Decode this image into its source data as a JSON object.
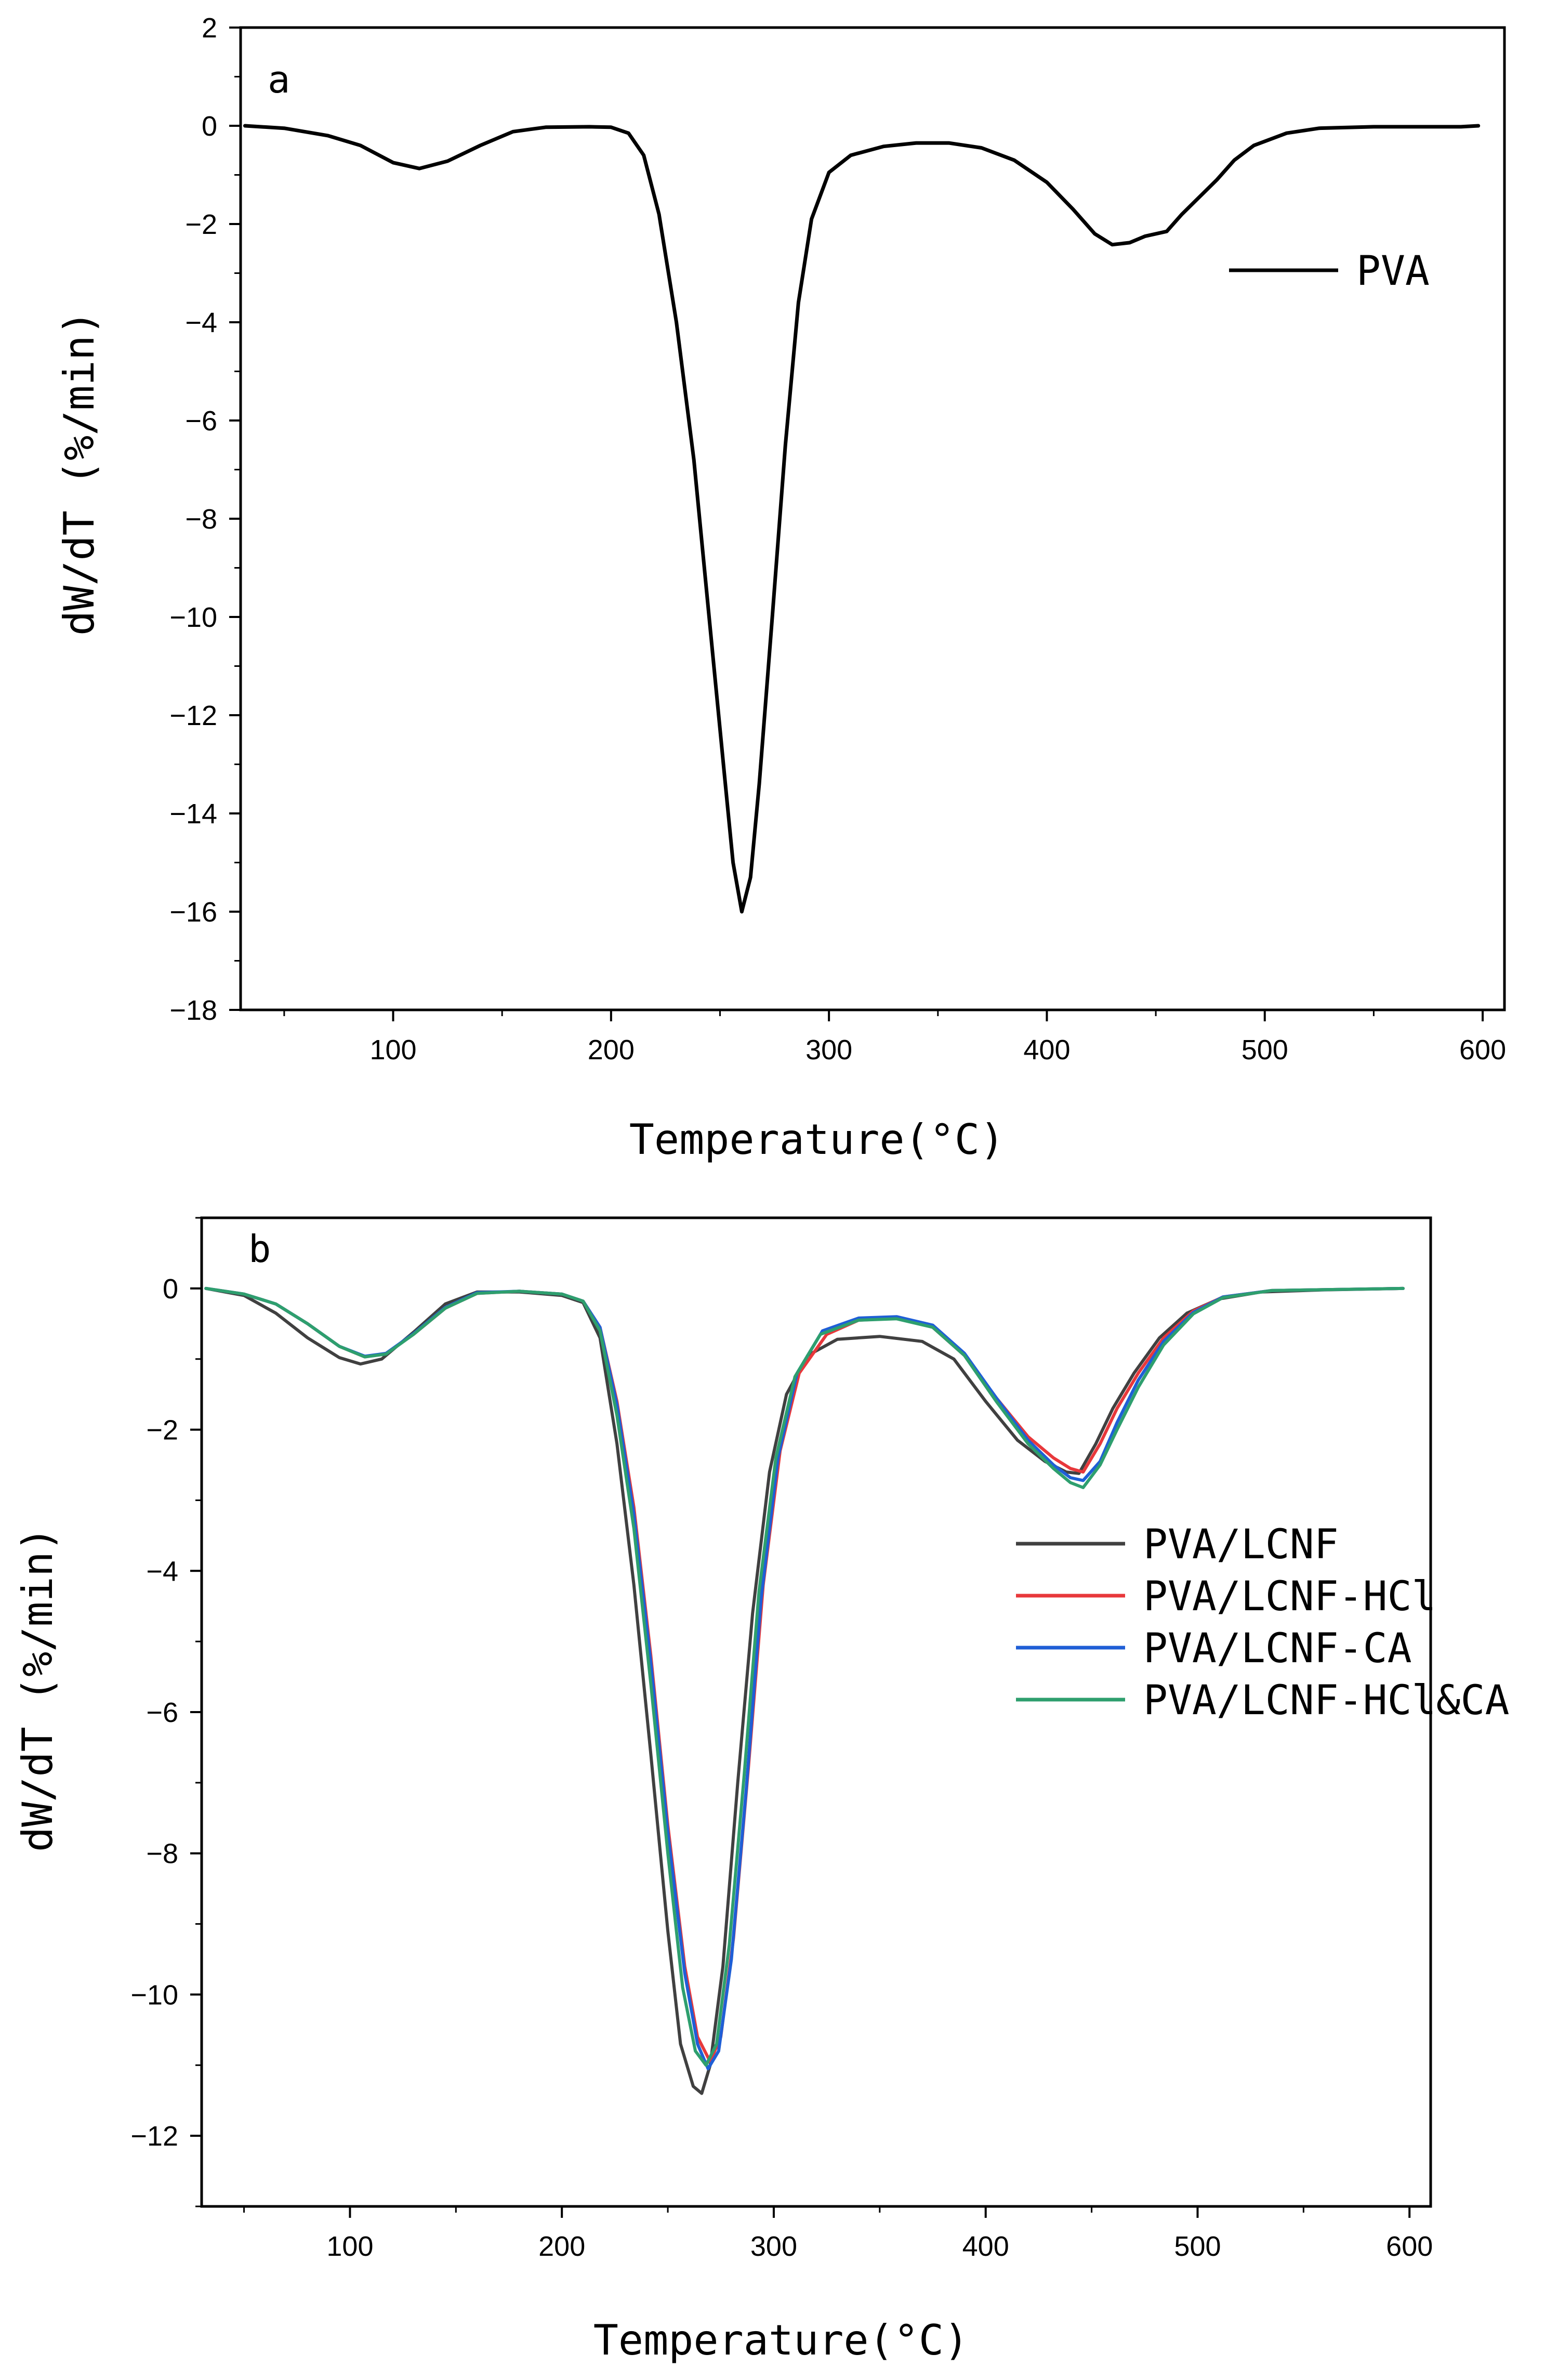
{
  "chart_data": [
    {
      "type": "line",
      "panel_label": "a",
      "xlabel": "Temperature(°C)",
      "ylabel": "dW/dT (%/min)",
      "xlim": [
        30,
        610
      ],
      "ylim": [
        -18,
        2
      ],
      "xticks": [
        100,
        200,
        300,
        400,
        500,
        600
      ],
      "xtick_labels": [
        "100",
        "200",
        "300",
        "400",
        "500",
        "600"
      ],
      "yticks": [
        -18,
        -16,
        -14,
        -12,
        -10,
        -8,
        -6,
        -4,
        -2,
        0,
        2
      ],
      "ytick_labels": [
        "−18",
        "−16",
        "−14",
        "−12",
        "−10",
        "−8",
        "−6",
        "−4",
        "−2",
        "0",
        "2"
      ],
      "legend_position": "upper-right",
      "series": [
        {
          "name": "PVA",
          "color": "#000000",
          "points": [
            [
              32,
              0
            ],
            [
              50,
              -0.05
            ],
            [
              70,
              -0.2
            ],
            [
              85,
              -0.4
            ],
            [
              100,
              -0.75
            ],
            [
              112,
              -0.87
            ],
            [
              125,
              -0.72
            ],
            [
              140,
              -0.4
            ],
            [
              155,
              -0.12
            ],
            [
              170,
              -0.03
            ],
            [
              190,
              -0.02
            ],
            [
              200,
              -0.03
            ],
            [
              208,
              -0.15
            ],
            [
              215,
              -0.6
            ],
            [
              222,
              -1.8
            ],
            [
              230,
              -4.0
            ],
            [
              238,
              -6.8
            ],
            [
              245,
              -10.0
            ],
            [
              252,
              -13.2
            ],
            [
              256,
              -15.0
            ],
            [
              260,
              -16.0
            ],
            [
              264,
              -15.3
            ],
            [
              268,
              -13.4
            ],
            [
              274,
              -10.0
            ],
            [
              280,
              -6.5
            ],
            [
              286,
              -3.6
            ],
            [
              292,
              -1.9
            ],
            [
              300,
              -0.95
            ],
            [
              310,
              -0.6
            ],
            [
              325,
              -0.42
            ],
            [
              340,
              -0.35
            ],
            [
              355,
              -0.35
            ],
            [
              370,
              -0.45
            ],
            [
              385,
              -0.7
            ],
            [
              400,
              -1.15
            ],
            [
              412,
              -1.7
            ],
            [
              422,
              -2.2
            ],
            [
              430,
              -2.42
            ],
            [
              438,
              -2.38
            ],
            [
              445,
              -2.25
            ],
            [
              455,
              -2.15
            ],
            [
              462,
              -1.8
            ],
            [
              470,
              -1.45
            ],
            [
              478,
              -1.1
            ],
            [
              486,
              -0.7
            ],
            [
              495,
              -0.4
            ],
            [
              510,
              -0.15
            ],
            [
              525,
              -0.05
            ],
            [
              550,
              -0.02
            ],
            [
              575,
              -0.02
            ],
            [
              590,
              -0.02
            ],
            [
              598,
              0
            ]
          ]
        }
      ]
    },
    {
      "type": "line",
      "panel_label": "b",
      "xlabel": "Temperature(°C)",
      "ylabel": "dW/dT (%/min)",
      "xlim": [
        30,
        610
      ],
      "ylim": [
        -13,
        1
      ],
      "xticks": [
        100,
        200,
        300,
        400,
        500,
        600
      ],
      "xtick_labels": [
        "100",
        "200",
        "300",
        "400",
        "500",
        "600"
      ],
      "yticks": [
        -12,
        -10,
        -8,
        -6,
        -4,
        -2,
        0
      ],
      "ytick_labels": [
        "−12",
        "−10",
        "−8",
        "−6",
        "−4",
        "−2",
        "0"
      ],
      "legend_position": "right",
      "series": [
        {
          "name": "PVA/LCNF",
          "color": "#404040",
          "points": [
            [
              32,
              0
            ],
            [
              50,
              -0.1
            ],
            [
              65,
              -0.35
            ],
            [
              80,
              -0.7
            ],
            [
              95,
              -0.98
            ],
            [
              105,
              -1.07
            ],
            [
              115,
              -1.0
            ],
            [
              130,
              -0.62
            ],
            [
              145,
              -0.22
            ],
            [
              160,
              -0.05
            ],
            [
              180,
              -0.05
            ],
            [
              200,
              -0.1
            ],
            [
              210,
              -0.2
            ],
            [
              218,
              -0.7
            ],
            [
              226,
              -2.2
            ],
            [
              234,
              -4.2
            ],
            [
              242,
              -6.6
            ],
            [
              250,
              -9.1
            ],
            [
              256,
              -10.7
            ],
            [
              262,
              -11.3
            ],
            [
              266,
              -11.4
            ],
            [
              270,
              -11.0
            ],
            [
              276,
              -9.6
            ],
            [
              283,
              -7.0
            ],
            [
              290,
              -4.6
            ],
            [
              298,
              -2.6
            ],
            [
              306,
              -1.5
            ],
            [
              316,
              -0.95
            ],
            [
              330,
              -0.72
            ],
            [
              350,
              -0.68
            ],
            [
              370,
              -0.75
            ],
            [
              385,
              -1.0
            ],
            [
              400,
              -1.6
            ],
            [
              415,
              -2.15
            ],
            [
              428,
              -2.45
            ],
            [
              438,
              -2.6
            ],
            [
              444,
              -2.62
            ],
            [
              452,
              -2.2
            ],
            [
              460,
              -1.7
            ],
            [
              470,
              -1.2
            ],
            [
              482,
              -0.7
            ],
            [
              495,
              -0.35
            ],
            [
              510,
              -0.15
            ],
            [
              530,
              -0.05
            ],
            [
              560,
              -0.02
            ],
            [
              597,
              0
            ]
          ]
        },
        {
          "name": "PVA/LCNF-HCl",
          "color": "#e8383b",
          "points": [
            [
              32,
              0
            ],
            [
              50,
              -0.08
            ],
            [
              65,
              -0.22
            ],
            [
              80,
              -0.5
            ],
            [
              95,
              -0.82
            ],
            [
              107,
              -0.97
            ],
            [
              117,
              -0.92
            ],
            [
              130,
              -0.65
            ],
            [
              145,
              -0.28
            ],
            [
              160,
              -0.07
            ],
            [
              180,
              -0.04
            ],
            [
              200,
              -0.08
            ],
            [
              210,
              -0.18
            ],
            [
              218,
              -0.55
            ],
            [
              226,
              -1.6
            ],
            [
              234,
              -3.1
            ],
            [
              242,
              -5.2
            ],
            [
              250,
              -7.6
            ],
            [
              258,
              -9.6
            ],
            [
              264,
              -10.6
            ],
            [
              270,
              -10.95
            ],
            [
              275,
              -10.6
            ],
            [
              281,
              -9.2
            ],
            [
              288,
              -6.8
            ],
            [
              295,
              -4.2
            ],
            [
              303,
              -2.3
            ],
            [
              312,
              -1.2
            ],
            [
              325,
              -0.65
            ],
            [
              340,
              -0.45
            ],
            [
              360,
              -0.42
            ],
            [
              375,
              -0.55
            ],
            [
              390,
              -0.95
            ],
            [
              405,
              -1.55
            ],
            [
              420,
              -2.1
            ],
            [
              432,
              -2.4
            ],
            [
              440,
              -2.55
            ],
            [
              446,
              -2.6
            ],
            [
              454,
              -2.2
            ],
            [
              462,
              -1.7
            ],
            [
              472,
              -1.2
            ],
            [
              484,
              -0.7
            ],
            [
              498,
              -0.32
            ],
            [
              512,
              -0.12
            ],
            [
              535,
              -0.03
            ],
            [
              597,
              0
            ]
          ]
        },
        {
          "name": "PVA/LCNF-CA",
          "color": "#1f5fd6",
          "points": [
            [
              32,
              0
            ],
            [
              50,
              -0.08
            ],
            [
              65,
              -0.22
            ],
            [
              80,
              -0.5
            ],
            [
              95,
              -0.82
            ],
            [
              107,
              -0.96
            ],
            [
              117,
              -0.92
            ],
            [
              130,
              -0.64
            ],
            [
              145,
              -0.27
            ],
            [
              160,
              -0.06
            ],
            [
              180,
              -0.04
            ],
            [
              200,
              -0.08
            ],
            [
              210,
              -0.18
            ],
            [
              218,
              -0.55
            ],
            [
              226,
              -1.65
            ],
            [
              234,
              -3.2
            ],
            [
              242,
              -5.3
            ],
            [
              250,
              -7.7
            ],
            [
              258,
              -9.7
            ],
            [
              264,
              -10.7
            ],
            [
              269,
              -11.05
            ],
            [
              274,
              -10.8
            ],
            [
              280,
              -9.5
            ],
            [
              287,
              -7.1
            ],
            [
              294,
              -4.4
            ],
            [
              302,
              -2.4
            ],
            [
              311,
              -1.2
            ],
            [
              323,
              -0.6
            ],
            [
              340,
              -0.42
            ],
            [
              358,
              -0.4
            ],
            [
              375,
              -0.52
            ],
            [
              390,
              -0.92
            ],
            [
              405,
              -1.55
            ],
            [
              420,
              -2.15
            ],
            [
              432,
              -2.5
            ],
            [
              440,
              -2.68
            ],
            [
              446,
              -2.72
            ],
            [
              454,
              -2.45
            ],
            [
              462,
              -1.9
            ],
            [
              472,
              -1.3
            ],
            [
              484,
              -0.75
            ],
            [
              498,
              -0.34
            ],
            [
              512,
              -0.12
            ],
            [
              535,
              -0.03
            ],
            [
              597,
              0
            ]
          ]
        },
        {
          "name": "PVA/LCNF-HCl&CA",
          "color": "#2e9f6e",
          "points": [
            [
              32,
              0
            ],
            [
              50,
              -0.08
            ],
            [
              65,
              -0.22
            ],
            [
              80,
              -0.5
            ],
            [
              95,
              -0.82
            ],
            [
              107,
              -0.97
            ],
            [
              117,
              -0.93
            ],
            [
              130,
              -0.65
            ],
            [
              145,
              -0.28
            ],
            [
              160,
              -0.07
            ],
            [
              180,
              -0.04
            ],
            [
              200,
              -0.08
            ],
            [
              210,
              -0.18
            ],
            [
              218,
              -0.6
            ],
            [
              226,
              -1.8
            ],
            [
              234,
              -3.4
            ],
            [
              242,
              -5.6
            ],
            [
              250,
              -8.0
            ],
            [
              257,
              -9.9
            ],
            [
              263,
              -10.8
            ],
            [
              268,
              -11.0
            ],
            [
              273,
              -10.7
            ],
            [
              279,
              -9.3
            ],
            [
              286,
              -6.9
            ],
            [
              293,
              -4.3
            ],
            [
              301,
              -2.4
            ],
            [
              310,
              -1.25
            ],
            [
              322,
              -0.65
            ],
            [
              340,
              -0.45
            ],
            [
              358,
              -0.43
            ],
            [
              375,
              -0.55
            ],
            [
              390,
              -0.95
            ],
            [
              405,
              -1.6
            ],
            [
              420,
              -2.2
            ],
            [
              432,
              -2.55
            ],
            [
              440,
              -2.75
            ],
            [
              446,
              -2.82
            ],
            [
              454,
              -2.5
            ],
            [
              462,
              -2.0
            ],
            [
              472,
              -1.4
            ],
            [
              484,
              -0.8
            ],
            [
              498,
              -0.36
            ],
            [
              512,
              -0.13
            ],
            [
              535,
              -0.03
            ],
            [
              597,
              0
            ]
          ]
        }
      ]
    }
  ]
}
